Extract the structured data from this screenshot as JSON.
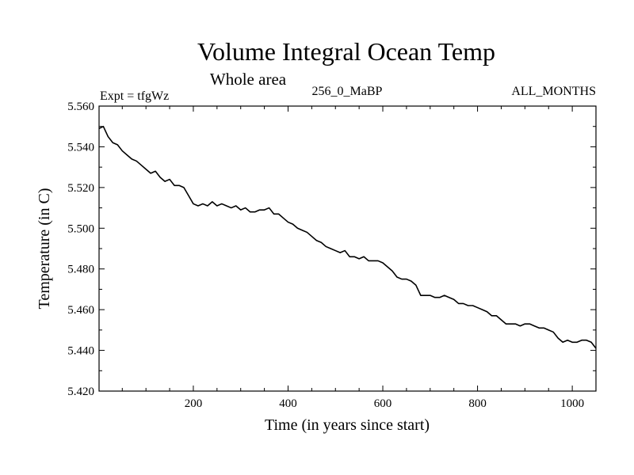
{
  "chart_data": {
    "type": "line",
    "title": "Volume Integral Ocean Temp",
    "subtitle": "Whole area",
    "experiment": "Expt = tfgWz",
    "period": "256_0_MaBP",
    "months": "ALL_MONTHS",
    "xlabel": "Time (in years since start)",
    "ylabel": "Temperature (in C)",
    "xlim": [
      1,
      1050
    ],
    "ylim": [
      5.42,
      5.56
    ],
    "xticks": [
      200,
      400,
      600,
      800,
      1000
    ],
    "xtick_labels": [
      "200",
      "400",
      "600",
      "800",
      "1000"
    ],
    "yticks": [
      5.42,
      5.44,
      5.46,
      5.48,
      5.5,
      5.52,
      5.54,
      5.56
    ],
    "ytick_labels": [
      "5.420",
      "5.440",
      "5.460",
      "5.480",
      "5.500",
      "5.520",
      "5.540",
      "5.560"
    ],
    "grid": false,
    "series": [
      {
        "name": "Volume Integral Ocean Temp",
        "x": [
          1,
          10,
          20,
          30,
          40,
          50,
          60,
          70,
          80,
          90,
          100,
          110,
          120,
          130,
          140,
          150,
          160,
          170,
          180,
          190,
          200,
          210,
          220,
          230,
          240,
          250,
          260,
          270,
          280,
          290,
          300,
          310,
          320,
          330,
          340,
          350,
          360,
          370,
          380,
          390,
          400,
          410,
          420,
          430,
          440,
          450,
          460,
          470,
          480,
          490,
          500,
          510,
          520,
          530,
          540,
          550,
          560,
          570,
          580,
          590,
          600,
          610,
          620,
          630,
          640,
          650,
          660,
          670,
          680,
          690,
          700,
          710,
          720,
          730,
          740,
          750,
          760,
          770,
          780,
          790,
          800,
          810,
          820,
          830,
          840,
          850,
          860,
          870,
          880,
          890,
          900,
          910,
          920,
          930,
          940,
          950,
          960,
          970,
          980,
          990,
          1000,
          1010,
          1020,
          1030,
          1040,
          1050
        ],
        "values": [
          5.549,
          5.55,
          5.545,
          5.542,
          5.541,
          5.538,
          5.536,
          5.534,
          5.533,
          5.531,
          5.529,
          5.527,
          5.528,
          5.525,
          5.523,
          5.524,
          5.521,
          5.521,
          5.52,
          5.516,
          5.512,
          5.511,
          5.512,
          5.511,
          5.513,
          5.511,
          5.512,
          5.511,
          5.51,
          5.511,
          5.509,
          5.51,
          5.508,
          5.508,
          5.509,
          5.509,
          5.51,
          5.507,
          5.507,
          5.505,
          5.503,
          5.502,
          5.5,
          5.499,
          5.498,
          5.496,
          5.494,
          5.493,
          5.491,
          5.49,
          5.489,
          5.488,
          5.489,
          5.486,
          5.486,
          5.485,
          5.486,
          5.484,
          5.484,
          5.484,
          5.483,
          5.481,
          5.479,
          5.476,
          5.475,
          5.475,
          5.474,
          5.472,
          5.467,
          5.467,
          5.467,
          5.466,
          5.466,
          5.467,
          5.466,
          5.465,
          5.463,
          5.463,
          5.462,
          5.462,
          5.461,
          5.46,
          5.459,
          5.457,
          5.457,
          5.455,
          5.453,
          5.453,
          5.453,
          5.452,
          5.453,
          5.453,
          5.452,
          5.451,
          5.451,
          5.45,
          5.449,
          5.446,
          5.444,
          5.445,
          5.444,
          5.444,
          5.445,
          5.445,
          5.444,
          5.441
        ]
      }
    ]
  }
}
